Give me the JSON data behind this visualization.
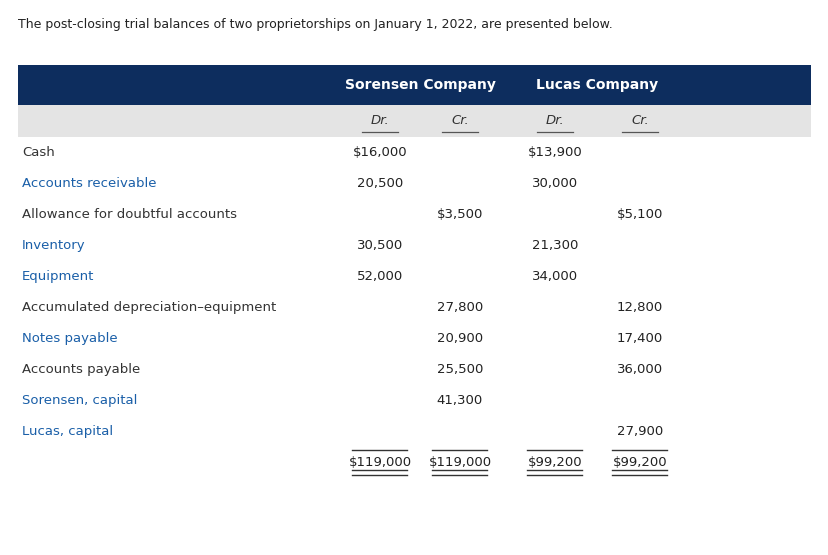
{
  "title": "The post-closing trial balances of two proprietorships on January 1, 2022, are presented below.",
  "header_bg": "#0d2d5e",
  "header_text_color": "#ffffff",
  "subheader_bg": "#e4e4e4",
  "col_header_1": "Sorensen Company",
  "col_header_2": "Lucas Company",
  "sub_cols": [
    "Dr.",
    "Cr.",
    "Dr.",
    "Cr."
  ],
  "accounts": [
    "Cash",
    "Accounts receivable",
    "Allowance for doubtful accounts",
    "Inventory",
    "Equipment",
    "Accumulated depreciation–equipment",
    "Notes payable",
    "Accounts payable",
    "Sorensen, capital",
    "Lucas, capital",
    ""
  ],
  "account_colors": [
    "#333333",
    "#1a5fa8",
    "#333333",
    "#1a5fa8",
    "#1a5fa8",
    "#333333",
    "#1a5fa8",
    "#333333",
    "#1a5fa8",
    "#1a5fa8",
    "#333333"
  ],
  "sorensen_dr": [
    "$16,000",
    "20,500",
    "",
    "30,500",
    "52,000",
    "",
    "",
    "",
    "",
    "",
    "$119,000"
  ],
  "sorensen_cr": [
    "",
    "",
    "$3,500",
    "",
    "",
    "27,800",
    "20,900",
    "25,500",
    "41,300",
    "",
    "$119,000"
  ],
  "lucas_dr": [
    "$13,900",
    "30,000",
    "",
    "21,300",
    "34,000",
    "",
    "",
    "",
    "",
    "",
    "$99,200"
  ],
  "lucas_cr": [
    "",
    "",
    "$5,100",
    "",
    "",
    "12,800",
    "17,400",
    "36,000",
    "",
    "27,900",
    "$99,200"
  ],
  "total_row_index": 10,
  "figsize": [
    8.29,
    5.55
  ],
  "dpi": 100
}
